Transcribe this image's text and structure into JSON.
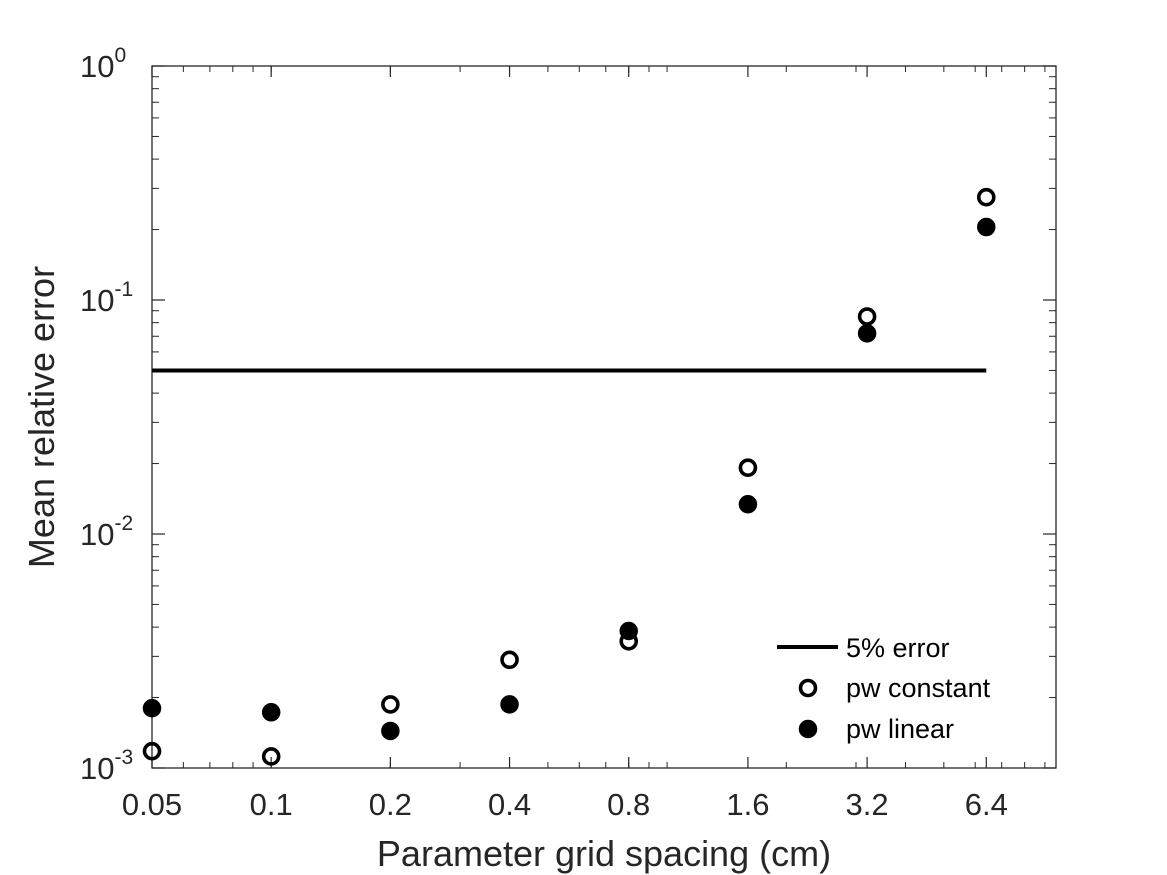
{
  "chart_data": {
    "type": "scatter",
    "xscale": "log2",
    "yscale": "log10",
    "xlim": [
      0.05,
      9.6
    ],
    "ylim": [
      0.001,
      1
    ],
    "xlabel": "Parameter grid spacing (cm)",
    "ylabel": "Mean relative error",
    "x_ticks": [
      {
        "value": 0.05,
        "label": "0.05"
      },
      {
        "value": 0.1,
        "label": "0.1"
      },
      {
        "value": 0.2,
        "label": "0.2"
      },
      {
        "value": 0.4,
        "label": "0.4"
      },
      {
        "value": 0.8,
        "label": "0.8"
      },
      {
        "value": 1.6,
        "label": "1.6"
      },
      {
        "value": 3.2,
        "label": "3.2"
      },
      {
        "value": 6.4,
        "label": "6.4"
      }
    ],
    "y_ticks": [
      {
        "value": 0.001,
        "base": "10",
        "exp": "-3"
      },
      {
        "value": 0.01,
        "base": "10",
        "exp": "-2"
      },
      {
        "value": 0.1,
        "base": "10",
        "exp": "-1"
      },
      {
        "value": 1,
        "base": "10",
        "exp": "0"
      }
    ],
    "reference_line": {
      "name": "5% error",
      "y": 0.05,
      "x": [
        0.05,
        6.4
      ],
      "color": "#000000"
    },
    "series": [
      {
        "name": "pw constant",
        "marker": "open-circle",
        "color": "#000000",
        "x": [
          0.05,
          0.1,
          0.2,
          0.4,
          0.8,
          1.6,
          3.2,
          6.4
        ],
        "y": [
          0.00118,
          0.00112,
          0.00187,
          0.0029,
          0.00348,
          0.0192,
          0.085,
          0.275
        ]
      },
      {
        "name": "pw linear",
        "marker": "filled-circle",
        "color": "#000000",
        "x": [
          0.05,
          0.1,
          0.2,
          0.4,
          0.8,
          1.6,
          3.2,
          6.4
        ],
        "y": [
          0.0018,
          0.00173,
          0.00144,
          0.00187,
          0.00385,
          0.0134,
          0.072,
          0.205
        ]
      }
    ],
    "legend": {
      "position": "bottom-right",
      "entries": [
        "5% error",
        "pw constant",
        "pw linear"
      ]
    },
    "grid": false
  }
}
